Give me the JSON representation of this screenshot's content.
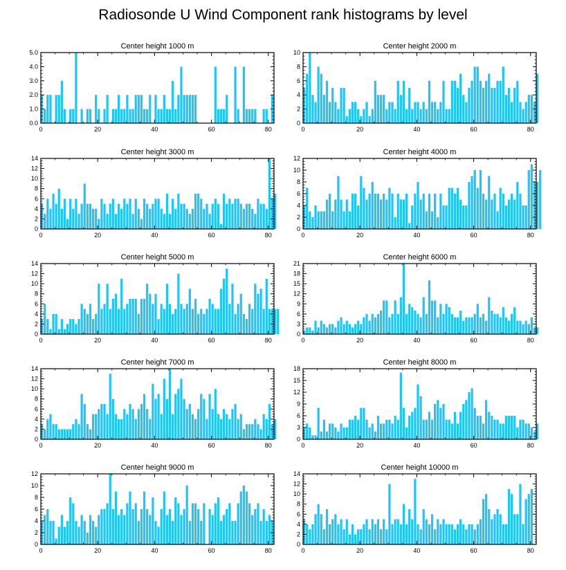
{
  "title": "Radiosonde U Wind Component rank histograms by level",
  "colors": {
    "bar": "#1EC5F8",
    "axis": "#000000"
  },
  "chart_data": [
    {
      "type": "bar",
      "title": "Center height 1000 m",
      "xlim": [
        0,
        82
      ],
      "ylim": [
        0,
        5
      ],
      "xticks": [
        0,
        20,
        40,
        60,
        80
      ],
      "yticks": [
        0,
        1,
        2,
        3,
        4,
        5
      ],
      "ytick_labels": [
        "0.0",
        "1.0",
        "2.0",
        "3.0",
        "4.0",
        "5.0"
      ],
      "values": [
        2,
        1,
        2,
        2,
        0,
        2,
        2,
        3,
        1,
        0,
        1,
        1,
        5,
        0,
        1,
        0,
        1,
        1,
        0,
        2,
        1,
        0,
        1,
        2,
        0,
        1,
        1,
        2,
        1,
        1,
        2,
        1,
        1,
        2,
        2,
        2,
        1,
        1,
        2,
        0,
        2,
        1,
        1,
        2,
        1,
        1,
        3,
        1,
        2,
        4,
        2,
        2,
        2,
        2,
        2,
        0,
        0,
        0,
        0,
        0,
        0,
        4,
        1,
        1,
        1,
        2,
        0,
        0,
        4,
        1,
        0,
        4,
        1,
        1,
        1,
        1,
        0,
        0,
        1,
        1,
        0,
        2
      ]
    },
    {
      "type": "bar",
      "title": "Center height 2000 m",
      "xlim": [
        0,
        82
      ],
      "ylim": [
        0,
        10
      ],
      "xticks": [
        0,
        20,
        40,
        60,
        80
      ],
      "yticks": [
        0,
        2,
        4,
        6,
        8,
        10
      ],
      "ytick_labels": [
        "0",
        "2",
        "4",
        "6",
        "8",
        "10"
      ],
      "values": [
        5,
        7,
        10,
        4,
        3,
        8,
        7,
        4,
        6,
        3,
        5,
        3,
        2,
        5,
        5,
        1,
        2,
        3,
        3,
        2,
        1,
        2,
        3,
        1,
        2,
        6,
        4,
        4,
        4,
        2,
        3,
        3,
        2,
        6,
        4,
        6,
        2,
        5,
        2,
        3,
        3,
        2,
        3,
        2,
        6,
        3,
        3,
        2,
        3,
        6,
        2,
        2,
        6,
        6,
        5,
        7,
        4,
        3,
        5,
        6,
        8,
        8,
        6,
        5,
        6,
        7,
        5,
        5,
        6,
        6,
        8,
        4,
        5,
        3,
        5,
        6,
        3,
        2,
        3,
        4,
        4,
        3,
        7
      ]
    },
    {
      "type": "bar",
      "title": "Center height 3000 m",
      "xlim": [
        0,
        82
      ],
      "ylim": [
        0,
        14
      ],
      "xticks": [
        0,
        20,
        40,
        60,
        80
      ],
      "yticks": [
        0,
        2,
        4,
        6,
        8,
        10,
        12,
        14
      ],
      "ytick_labels": [
        "0",
        "2",
        "4",
        "6",
        "8",
        "10",
        "12",
        "14"
      ],
      "values": [
        5,
        3,
        6,
        4,
        7,
        5,
        8,
        4,
        6,
        2,
        6,
        4,
        6,
        3,
        5,
        9,
        5,
        5,
        4,
        4,
        2,
        6,
        5,
        3,
        5,
        6,
        3,
        5,
        4,
        6,
        5,
        6,
        3,
        6,
        4,
        2,
        6,
        5,
        4,
        5,
        6,
        6,
        4,
        3,
        7,
        3,
        6,
        4,
        7,
        5,
        5,
        4,
        3,
        4,
        7,
        7,
        6,
        4,
        5,
        3,
        5,
        6,
        5,
        1,
        7,
        5,
        6,
        5,
        6,
        6,
        5,
        4,
        5,
        5,
        4,
        3,
        6,
        5,
        5,
        4,
        14,
        6,
        7
      ]
    },
    {
      "type": "bar",
      "title": "Center height 4000 m",
      "xlim": [
        0,
        82
      ],
      "ylim": [
        0,
        12
      ],
      "xticks": [
        0,
        20,
        40,
        60,
        80
      ],
      "yticks": [
        0,
        2,
        4,
        6,
        8,
        10,
        12
      ],
      "ytick_labels": [
        "0",
        "2",
        "4",
        "6",
        "8",
        "10",
        "12"
      ],
      "values": [
        4,
        7,
        3,
        2,
        4,
        3,
        3,
        3,
        5,
        6,
        3,
        5,
        9,
        5,
        3,
        5,
        3,
        6,
        6,
        4,
        9,
        7,
        5,
        6,
        8,
        6,
        6,
        5,
        6,
        5,
        7,
        6,
        2,
        6,
        5,
        5,
        6,
        1,
        4,
        6,
        8,
        5,
        6,
        3,
        6,
        3,
        6,
        2,
        6,
        4,
        4,
        7,
        7,
        6,
        7,
        5,
        4,
        4,
        8,
        9,
        10,
        7,
        10,
        6,
        5,
        9,
        5,
        6,
        3,
        7,
        6,
        4,
        5,
        6,
        5,
        8,
        6,
        4,
        4,
        10,
        11,
        8,
        8,
        10
      ]
    },
    {
      "type": "bar",
      "title": "Center height 5000 m",
      "xlim": [
        0,
        82
      ],
      "ylim": [
        0,
        14
      ],
      "xticks": [
        0,
        20,
        40,
        60,
        80
      ],
      "yticks": [
        0,
        2,
        4,
        6,
        8,
        10,
        12,
        14
      ],
      "ytick_labels": [
        "0",
        "2",
        "4",
        "6",
        "8",
        "10",
        "12",
        "14"
      ],
      "values": [
        3,
        6,
        3,
        1,
        4,
        4,
        1,
        3,
        1,
        2,
        3,
        3,
        2,
        3,
        6,
        5,
        4,
        6,
        3,
        4,
        10,
        5,
        6,
        10,
        5,
        7,
        8,
        5,
        11,
        5,
        6,
        7,
        7,
        7,
        4,
        7,
        7,
        10,
        8,
        6,
        8,
        3,
        6,
        5,
        10,
        6,
        4,
        5,
        12,
        6,
        5,
        6,
        9,
        5,
        7,
        4,
        5,
        4,
        5,
        7,
        6,
        5,
        5,
        9,
        11,
        13,
        6,
        10,
        4,
        6,
        8,
        4,
        3,
        6,
        5,
        10,
        8,
        9,
        5,
        11,
        5,
        5,
        5,
        5
      ]
    },
    {
      "type": "bar",
      "title": "Center height 6000 m",
      "xlim": [
        0,
        82
      ],
      "ylim": [
        0,
        21
      ],
      "xticks": [
        0,
        20,
        40,
        60,
        80
      ],
      "yticks": [
        0,
        3,
        6,
        9,
        12,
        15,
        18,
        21
      ],
      "ytick_labels": [
        "0",
        "3",
        "6",
        "9",
        "12",
        "15",
        "18",
        "21"
      ],
      "values": [
        1,
        2,
        2,
        1,
        4,
        2,
        4,
        3,
        2,
        3,
        3,
        2,
        4,
        5,
        3,
        4,
        3,
        2,
        3,
        4,
        3,
        5,
        6,
        4,
        6,
        5,
        6,
        7,
        10,
        10,
        5,
        6,
        10,
        6,
        11,
        21,
        6,
        9,
        8,
        7,
        6,
        5,
        11,
        6,
        16,
        10,
        10,
        5,
        9,
        6,
        9,
        8,
        6,
        5,
        5,
        7,
        4,
        5,
        5,
        5,
        6,
        9,
        5,
        6,
        4,
        11,
        7,
        6,
        6,
        5,
        8,
        5,
        4,
        6,
        8,
        4,
        4,
        3,
        4,
        3,
        5,
        2,
        2
      ]
    },
    {
      "type": "bar",
      "title": "Center height 7000 m",
      "xlim": [
        0,
        82
      ],
      "ylim": [
        0,
        14
      ],
      "xticks": [
        0,
        20,
        40,
        60,
        80
      ],
      "yticks": [
        0,
        2,
        4,
        6,
        8,
        10,
        12,
        14
      ],
      "ytick_labels": [
        "0",
        "2",
        "4",
        "6",
        "8",
        "10",
        "12",
        "14"
      ],
      "values": [
        3,
        2,
        4,
        5,
        3,
        3,
        2,
        2,
        2,
        2,
        2,
        3,
        4,
        3,
        9,
        7,
        3,
        2,
        5,
        5,
        6,
        7,
        7,
        5,
        13,
        8,
        5,
        4,
        4,
        6,
        5,
        7,
        6,
        4,
        6,
        7,
        9,
        6,
        4,
        11,
        8,
        9,
        5,
        12,
        8,
        14,
        5,
        9,
        10,
        12,
        8,
        6,
        7,
        5,
        4,
        6,
        9,
        8,
        4,
        9,
        6,
        10,
        5,
        4,
        6,
        5,
        4,
        6,
        7,
        4,
        5,
        2,
        3,
        3,
        3,
        4,
        3,
        2,
        5,
        4,
        7,
        3,
        4
      ]
    },
    {
      "type": "bar",
      "title": "Center height 8000 m",
      "xlim": [
        0,
        82
      ],
      "ylim": [
        0,
        18
      ],
      "xticks": [
        0,
        20,
        40,
        60,
        80
      ],
      "yticks": [
        0,
        3,
        6,
        9,
        12,
        15,
        18
      ],
      "ytick_labels": [
        "0",
        "3",
        "6",
        "9",
        "12",
        "15",
        "18"
      ],
      "values": [
        3,
        4,
        3,
        1,
        1,
        8,
        2,
        5,
        2,
        4,
        4,
        3,
        2,
        4,
        3,
        3,
        5,
        5,
        6,
        5,
        8,
        8,
        5,
        3,
        4,
        2,
        6,
        4,
        4,
        5,
        5,
        4,
        6,
        5,
        17,
        8,
        3,
        6,
        7,
        8,
        14,
        11,
        5,
        5,
        7,
        5,
        9,
        10,
        8,
        9,
        5,
        5,
        4,
        7,
        4,
        7,
        9,
        10,
        12,
        13,
        8,
        6,
        6,
        4,
        10,
        7,
        6,
        5,
        5,
        4,
        4,
        6,
        6,
        6,
        6,
        3,
        5,
        5,
        4,
        4,
        3,
        2,
        4
      ]
    },
    {
      "type": "bar",
      "title": "Center height 9000 m",
      "xlim": [
        0,
        82
      ],
      "ylim": [
        0,
        12
      ],
      "xticks": [
        0,
        20,
        40,
        60,
        80
      ],
      "yticks": [
        0,
        2,
        4,
        6,
        8,
        10,
        12
      ],
      "ytick_labels": [
        "0",
        "2",
        "4",
        "6",
        "8",
        "10",
        "12"
      ],
      "values": [
        4,
        5,
        6,
        4,
        4,
        1,
        3,
        5,
        3,
        4,
        8,
        7,
        4,
        3,
        5,
        4,
        2,
        5,
        4,
        3,
        5,
        6,
        6,
        7,
        12,
        6,
        9,
        5,
        6,
        5,
        7,
        9,
        6,
        7,
        4,
        6,
        9,
        6,
        5,
        8,
        4,
        3,
        6,
        9,
        5,
        6,
        4,
        8,
        7,
        5,
        6,
        10,
        4,
        7,
        7,
        6,
        4,
        7,
        0,
        6,
        5,
        7,
        8,
        4,
        5,
        6,
        7,
        4,
        4,
        7,
        9,
        10,
        9,
        7,
        5,
        6,
        7,
        4,
        6,
        4,
        5,
        4
      ]
    },
    {
      "type": "bar",
      "title": "Center height 10000 m",
      "xlim": [
        0,
        82
      ],
      "ylim": [
        0,
        14
      ],
      "xticks": [
        0,
        20,
        40,
        60,
        80
      ],
      "yticks": [
        0,
        2,
        4,
        6,
        8,
        10,
        12,
        14
      ],
      "ytick_labels": [
        "0",
        "2",
        "4",
        "6",
        "8",
        "10",
        "12",
        "14"
      ],
      "values": [
        5,
        4,
        3,
        4,
        6,
        8,
        6,
        3,
        7,
        4,
        5,
        6,
        4,
        5,
        3,
        5,
        2,
        4,
        2,
        3,
        3,
        4,
        5,
        3,
        5,
        4,
        5,
        3,
        5,
        3,
        12,
        4,
        5,
        5,
        4,
        8,
        4,
        7,
        5,
        13,
        4,
        3,
        7,
        5,
        4,
        6,
        3,
        5,
        4,
        5,
        4,
        4,
        4,
        3,
        4,
        5,
        4,
        3,
        4,
        4,
        3,
        4,
        5,
        9,
        10,
        7,
        5,
        6,
        7,
        6,
        4,
        4,
        11,
        10,
        6,
        6,
        12,
        4,
        9,
        10,
        11
      ]
    }
  ]
}
